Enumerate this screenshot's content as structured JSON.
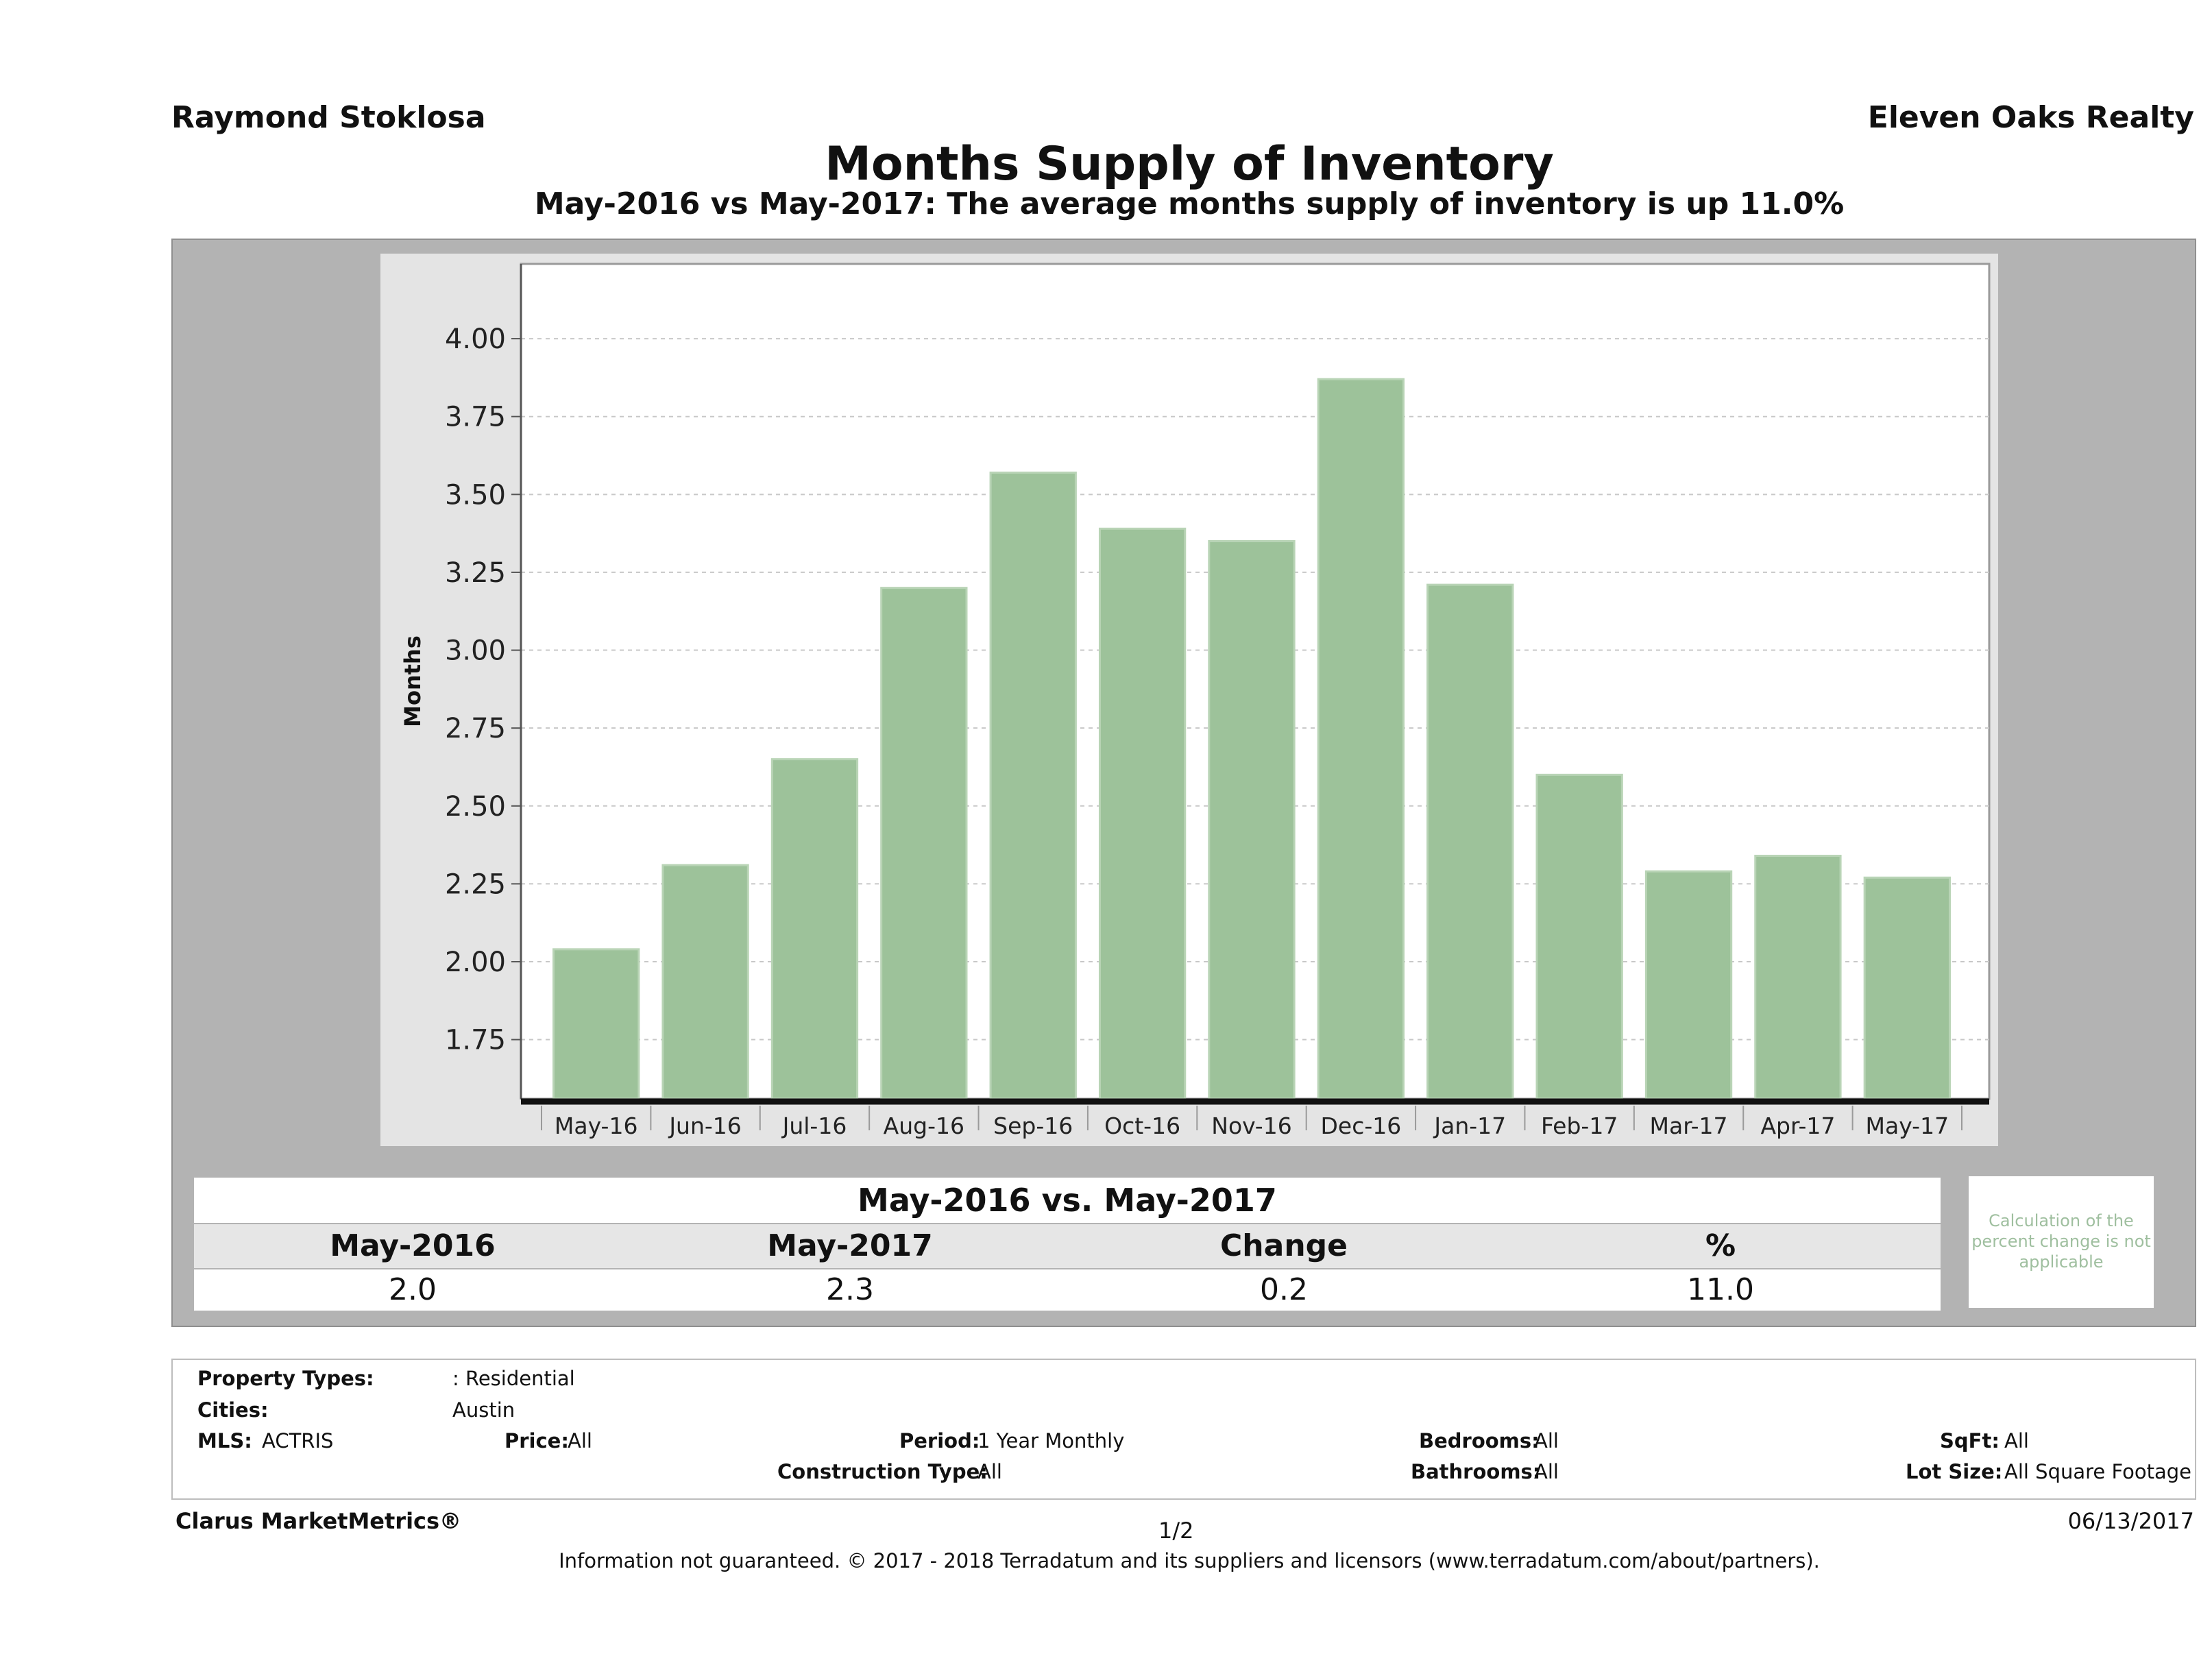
{
  "header": {
    "agent": "Raymond Stoklosa",
    "brokerage": "Eleven Oaks Realty"
  },
  "chart_data": {
    "type": "bar",
    "title": "Months Supply of Inventory",
    "subtitle": "May-2016 vs May-2017: The average months supply of inventory is up 11.0%",
    "ylabel": "Months",
    "xlabel": "",
    "categories": [
      "May-16",
      "Jun-16",
      "Jul-16",
      "Aug-16",
      "Sep-16",
      "Oct-16",
      "Nov-16",
      "Dec-16",
      "Jan-17",
      "Feb-17",
      "Mar-17",
      "Apr-17",
      "May-17"
    ],
    "values": [
      2.04,
      2.31,
      2.65,
      3.2,
      3.57,
      3.39,
      3.35,
      3.87,
      3.21,
      2.6,
      2.29,
      2.34,
      2.27
    ],
    "ylim": [
      1.56,
      4.24
    ],
    "yticks": [
      "1.75",
      "2.00",
      "2.25",
      "2.50",
      "2.75",
      "3.00",
      "3.25",
      "3.50",
      "3.75",
      "4.00"
    ],
    "grid": true,
    "bar_color": "#9dc29a"
  },
  "comparison": {
    "title": "May-2016 vs. May-2017",
    "headers": [
      "May-2016",
      "May-2017",
      "Change",
      "%"
    ],
    "values": [
      "2.0",
      "2.3",
      "0.2",
      "11.0"
    ],
    "note": "Calculation of the percent change is not applicable"
  },
  "filters": {
    "property_types_label": "Property Types:",
    "property_types_value": ": Residential",
    "cities_label": "Cities:",
    "cities_value": "Austin",
    "mls_label": "MLS:",
    "mls_value": "ACTRIS",
    "price_label": "Price:",
    "price_value": "All",
    "period_label": "Period:",
    "period_value": "1 Year Monthly",
    "construction_label": "Construction Type:",
    "construction_value": "All",
    "bedrooms_label": "Bedrooms:",
    "bedrooms_value": "All",
    "bathrooms_label": "Bathrooms:",
    "bathrooms_value": "All",
    "sqft_label": "SqFt:",
    "sqft_value": "All",
    "lotsize_label": "Lot Size:",
    "lotsize_value": "All Square Footage"
  },
  "footer": {
    "product": "Clarus MarketMetrics®",
    "page": "1/2",
    "date": "06/13/2017",
    "disclaimer": "Information not guaranteed. © 2017 - 2018 Terradatum and its suppliers and licensors (www.terradatum.com/about/partners)."
  }
}
